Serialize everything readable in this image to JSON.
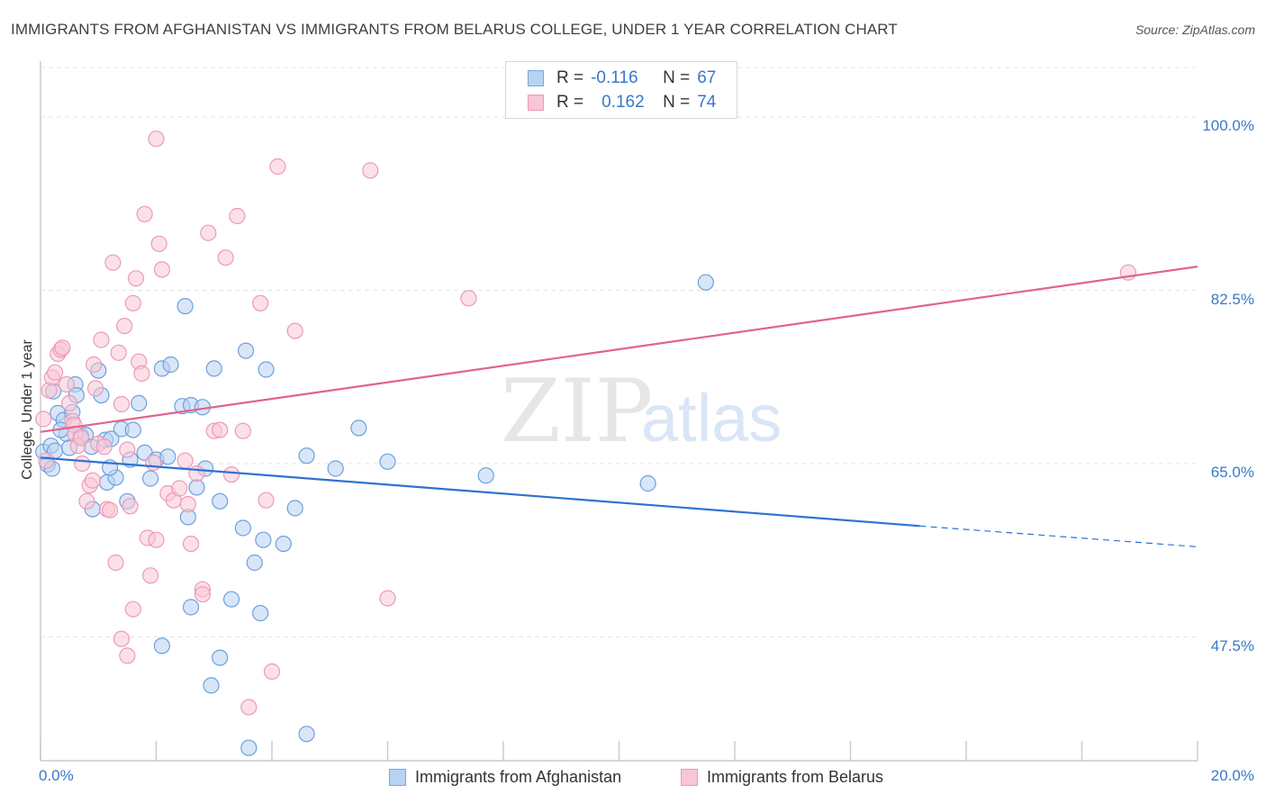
{
  "title": "IMMIGRANTS FROM AFGHANISTAN VS IMMIGRANTS FROM BELARUS COLLEGE, UNDER 1 YEAR CORRELATION CHART",
  "source": "Source: ZipAtlas.com",
  "watermark": {
    "zip": "ZIP",
    "atlas": "atlas"
  },
  "legend": {
    "r_label": "R =",
    "n_label": "N =",
    "rows": [
      {
        "r": "-0.116",
        "n": "67",
        "swatch_fill": "#b8d2f2",
        "swatch_stroke": "#7aa7e0"
      },
      {
        "r": "0.162",
        "n": "74",
        "swatch_fill": "#f9c6d6",
        "swatch_stroke": "#ec9ab5"
      }
    ]
  },
  "chart_data": {
    "type": "scatter",
    "title": "IMMIGRANTS FROM AFGHANISTAN VS IMMIGRANTS FROM BELARUS COLLEGE, UNDER 1 YEAR CORRELATION CHART",
    "xlabel": "",
    "ylabel": "College, Under 1 year",
    "xlim": [
      0,
      20
    ],
    "ylim": [
      35,
      105
    ],
    "x_tick_labels": [
      "0.0%",
      "20.0%"
    ],
    "y_ticks": [
      47.5,
      65.0,
      82.5,
      100.0
    ],
    "y_tick_labels": [
      "47.5%",
      "65.0%",
      "82.5%",
      "100.0%"
    ],
    "grid": true,
    "legend_position": "top-center",
    "colors": {
      "afghanistan": "#5b95dc",
      "belarus": "#ee8fb0",
      "blue_line": "#2f72d0",
      "pink_line": "#e0648c"
    },
    "series": [
      {
        "name": "Immigrants from Afghanistan",
        "r": -0.116,
        "n": 67,
        "trend": {
          "x": [
            0,
            15.2
          ],
          "y": [
            65.6,
            58.7
          ],
          "dashed_to": [
            20,
            56.6
          ]
        },
        "points": [
          [
            0.05,
            66.2
          ],
          [
            0.12,
            64.9
          ],
          [
            0.18,
            66.8
          ],
          [
            0.2,
            64.5
          ],
          [
            0.25,
            66.3
          ],
          [
            0.22,
            72.3
          ],
          [
            0.3,
            70.1
          ],
          [
            0.4,
            69.4
          ],
          [
            0.45,
            68.0
          ],
          [
            0.5,
            66.6
          ],
          [
            0.55,
            70.2
          ],
          [
            0.6,
            73.0
          ],
          [
            0.62,
            71.9
          ],
          [
            0.7,
            67.8
          ],
          [
            0.78,
            67.9
          ],
          [
            0.88,
            66.7
          ],
          [
            0.9,
            60.4
          ],
          [
            1.0,
            74.4
          ],
          [
            1.05,
            71.9
          ],
          [
            1.12,
            67.4
          ],
          [
            1.15,
            63.1
          ],
          [
            1.22,
            67.5
          ],
          [
            1.3,
            63.6
          ],
          [
            1.4,
            68.5
          ],
          [
            1.5,
            61.2
          ],
          [
            1.55,
            65.4
          ],
          [
            1.6,
            68.4
          ],
          [
            1.7,
            71.1
          ],
          [
            1.8,
            66.1
          ],
          [
            1.9,
            63.5
          ],
          [
            2.0,
            65.4
          ],
          [
            2.1,
            74.6
          ],
          [
            2.2,
            65.7
          ],
          [
            2.25,
            75.0
          ],
          [
            2.45,
            70.8
          ],
          [
            2.5,
            80.9
          ],
          [
            2.55,
            59.6
          ],
          [
            2.6,
            70.9
          ],
          [
            2.7,
            62.6
          ],
          [
            2.8,
            70.7
          ],
          [
            2.85,
            64.5
          ],
          [
            3.0,
            74.6
          ],
          [
            3.1,
            61.2
          ],
          [
            3.5,
            58.5
          ],
          [
            3.55,
            76.4
          ],
          [
            3.7,
            55.0
          ],
          [
            3.8,
            49.9
          ],
          [
            3.85,
            57.3
          ],
          [
            3.9,
            74.5
          ],
          [
            4.2,
            56.9
          ],
          [
            4.4,
            60.5
          ],
          [
            4.6,
            65.8
          ],
          [
            5.1,
            64.5
          ],
          [
            5.5,
            68.6
          ],
          [
            6.0,
            65.2
          ],
          [
            7.7,
            63.8
          ],
          [
            10.5,
            63.0
          ],
          [
            11.5,
            83.3
          ],
          [
            2.1,
            46.6
          ],
          [
            2.6,
            50.5
          ],
          [
            3.3,
            51.3
          ],
          [
            3.1,
            45.4
          ],
          [
            2.95,
            42.6
          ],
          [
            3.6,
            36.3
          ],
          [
            4.6,
            37.7
          ],
          [
            1.2,
            64.6
          ],
          [
            0.35,
            68.4
          ]
        ]
      },
      {
        "name": "Immigrants from Belarus",
        "r": 0.162,
        "n": 74,
        "trend": {
          "x": [
            0,
            20
          ],
          "y": [
            68.2,
            84.9
          ]
        },
        "points": [
          [
            0.05,
            69.5
          ],
          [
            0.1,
            65.3
          ],
          [
            0.15,
            72.4
          ],
          [
            0.2,
            73.7
          ],
          [
            0.25,
            74.2
          ],
          [
            0.3,
            76.1
          ],
          [
            0.35,
            76.5
          ],
          [
            0.38,
            76.7
          ],
          [
            0.45,
            73.0
          ],
          [
            0.5,
            71.1
          ],
          [
            0.55,
            69.3
          ],
          [
            0.58,
            68.9
          ],
          [
            0.6,
            68.0
          ],
          [
            0.65,
            66.8
          ],
          [
            0.7,
            67.6
          ],
          [
            0.72,
            65.0
          ],
          [
            0.8,
            61.2
          ],
          [
            0.85,
            62.8
          ],
          [
            0.9,
            63.3
          ],
          [
            0.92,
            75.0
          ],
          [
            0.95,
            72.6
          ],
          [
            1.0,
            67.0
          ],
          [
            1.05,
            77.5
          ],
          [
            1.1,
            66.7
          ],
          [
            1.15,
            60.4
          ],
          [
            1.2,
            60.3
          ],
          [
            1.25,
            85.3
          ],
          [
            1.3,
            55.0
          ],
          [
            1.35,
            76.2
          ],
          [
            1.4,
            71.0
          ],
          [
            1.45,
            78.9
          ],
          [
            1.5,
            66.4
          ],
          [
            1.55,
            60.7
          ],
          [
            1.6,
            81.2
          ],
          [
            1.65,
            83.7
          ],
          [
            1.7,
            75.3
          ],
          [
            1.75,
            74.1
          ],
          [
            1.8,
            90.2
          ],
          [
            1.85,
            57.5
          ],
          [
            1.9,
            53.7
          ],
          [
            1.95,
            65.1
          ],
          [
            2.0,
            57.3
          ],
          [
            2.05,
            87.2
          ],
          [
            2.1,
            84.6
          ],
          [
            2.2,
            62.0
          ],
          [
            2.3,
            61.3
          ],
          [
            2.4,
            62.5
          ],
          [
            2.5,
            65.3
          ],
          [
            2.55,
            60.9
          ],
          [
            2.6,
            56.9
          ],
          [
            2.7,
            64.0
          ],
          [
            2.8,
            52.3
          ],
          [
            2.9,
            88.3
          ],
          [
            3.0,
            68.3
          ],
          [
            3.1,
            68.4
          ],
          [
            3.2,
            85.8
          ],
          [
            3.3,
            63.9
          ],
          [
            3.4,
            90.0
          ],
          [
            3.5,
            68.3
          ],
          [
            3.6,
            40.4
          ],
          [
            3.8,
            81.2
          ],
          [
            3.9,
            61.3
          ],
          [
            4.0,
            44.0
          ],
          [
            4.1,
            95.0
          ],
          [
            4.4,
            78.4
          ],
          [
            5.7,
            94.6
          ],
          [
            7.4,
            81.7
          ],
          [
            6.0,
            51.4
          ],
          [
            2.0,
            97.8
          ],
          [
            1.4,
            47.3
          ],
          [
            1.5,
            45.6
          ],
          [
            1.6,
            50.3
          ],
          [
            2.8,
            51.8
          ],
          [
            18.8,
            84.3
          ]
        ]
      }
    ]
  },
  "bottom_legend": [
    "Immigrants from Afghanistan",
    "Immigrants from Belarus"
  ]
}
